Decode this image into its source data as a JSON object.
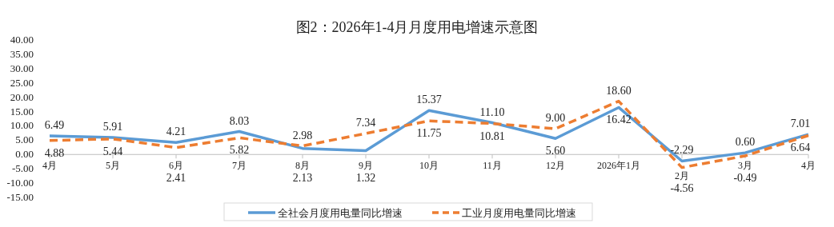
{
  "chart_data": {
    "type": "line",
    "title": "图2：2026年1-4月月度用电增速示意图",
    "categories": [
      "4月",
      "5月",
      "6月",
      "7月",
      "8月",
      "9月",
      "10月",
      "11月",
      "12月",
      "2026年1月",
      "2月",
      "3月",
      "4月"
    ],
    "series": [
      {
        "name": "全社会月度用电量同比增速",
        "color": "#5b9bd5",
        "line_style": "solid",
        "values": [
          6.49,
          5.91,
          4.21,
          8.03,
          2.13,
          1.32,
          15.37,
          11.1,
          5.6,
          16.42,
          -2.29,
          0.6,
          7.01
        ],
        "value_labels": [
          "6.49",
          "5.91",
          "4.21",
          "8.03",
          "2.13",
          "1.32",
          "15.37",
          "11.10",
          "5.60",
          "16.42",
          "-2.29",
          "0.60",
          "7.01"
        ]
      },
      {
        "name": "工业月度用电量同比增速",
        "color": "#ed7d31",
        "line_style": "dashed",
        "values": [
          4.88,
          5.44,
          2.41,
          5.82,
          2.98,
          7.34,
          11.75,
          10.81,
          9.0,
          18.6,
          -4.56,
          -0.49,
          6.64
        ],
        "value_labels": [
          "4.88",
          "5.44",
          "2.41",
          "5.82",
          "2.98",
          "7.34",
          "11.75",
          "10.81",
          "9.00",
          "18.60",
          "-4.56",
          "-0.49",
          "6.64"
        ]
      }
    ],
    "ylim": [
      -15,
      40
    ],
    "yticks": [
      {
        "value": -15,
        "label": "-15.00"
      },
      {
        "value": -10,
        "label": "-10.00"
      },
      {
        "value": -5,
        "label": "-5.00"
      },
      {
        "value": 0,
        "label": "0.00"
      },
      {
        "value": 5,
        "label": "5.00"
      },
      {
        "value": 10,
        "label": "10.00"
      },
      {
        "value": 15,
        "label": "15.00"
      },
      {
        "value": 20,
        "label": "20.00"
      },
      {
        "value": 25,
        "label": "25.00"
      },
      {
        "value": 30,
        "label": "30.00"
      },
      {
        "value": 35,
        "label": "35.00"
      },
      {
        "value": 40,
        "label": "40.00"
      }
    ],
    "legend": "bottom",
    "grid": false,
    "marker": "none"
  }
}
